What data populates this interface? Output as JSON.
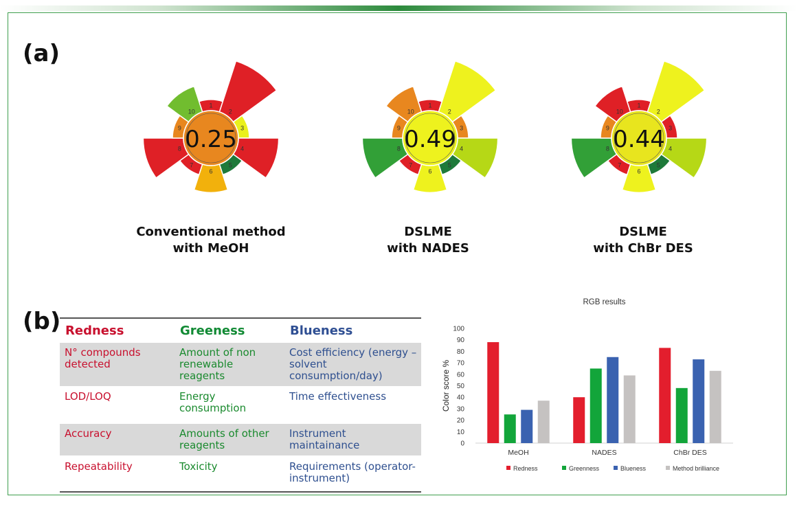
{
  "panel_a_label": "(a)",
  "panel_b_label": "(b)",
  "wheels": [
    {
      "score": "0.25",
      "center_color": "#e8871f",
      "caption": [
        "Conventional method",
        "with MeOH"
      ],
      "segments": [
        {
          "n": "1",
          "score": 0.2,
          "color": "#df2026"
        },
        {
          "n": "2",
          "score": 1.0,
          "color": "#df2026"
        },
        {
          "n": "3",
          "score": 0.2,
          "color": "#eaf01c"
        },
        {
          "n": "4",
          "score": 0.75,
          "color": "#df2026"
        },
        {
          "n": "5",
          "score": 0.2,
          "color": "#1e7a3a"
        },
        {
          "n": "6",
          "score": 0.5,
          "color": "#f2b10c"
        },
        {
          "n": "7",
          "score": 0.2,
          "color": "#df2026"
        },
        {
          "n": "8",
          "score": 0.75,
          "color": "#df2026"
        },
        {
          "n": "9",
          "score": 0.2,
          "color": "#e8871f"
        },
        {
          "n": "10",
          "score": 0.5,
          "color": "#71bd2f"
        }
      ]
    },
    {
      "score": "0.49",
      "center_color": "#eef21e",
      "caption": [
        "DSLME",
        "with NADES"
      ],
      "segments": [
        {
          "n": "1",
          "score": 0.2,
          "color": "#df2026"
        },
        {
          "n": "2",
          "score": 1.0,
          "color": "#eef21e"
        },
        {
          "n": "3",
          "score": 0.2,
          "color": "#e8871f"
        },
        {
          "n": "4",
          "score": 0.75,
          "color": "#b6d816"
        },
        {
          "n": "5",
          "score": 0.2,
          "color": "#1e7a3a"
        },
        {
          "n": "6",
          "score": 0.5,
          "color": "#eef21e"
        },
        {
          "n": "7",
          "score": 0.2,
          "color": "#df2026"
        },
        {
          "n": "8",
          "score": 0.75,
          "color": "#32a037"
        },
        {
          "n": "9",
          "score": 0.2,
          "color": "#e8871f"
        },
        {
          "n": "10",
          "score": 0.5,
          "color": "#e8871f"
        }
      ]
    },
    {
      "score": "0.44",
      "center_color": "#e8e51e",
      "caption": [
        "DSLME",
        "with ChBr DES"
      ],
      "segments": [
        {
          "n": "1",
          "score": 0.2,
          "color": "#df2026"
        },
        {
          "n": "2",
          "score": 1.0,
          "color": "#eef21e"
        },
        {
          "n": "3",
          "score": 0.2,
          "color": "#df2026"
        },
        {
          "n": "4",
          "score": 0.75,
          "color": "#b6d816"
        },
        {
          "n": "5",
          "score": 0.2,
          "color": "#1e7a3a"
        },
        {
          "n": "6",
          "score": 0.5,
          "color": "#eef21e"
        },
        {
          "n": "7",
          "score": 0.2,
          "color": "#df2026"
        },
        {
          "n": "8",
          "score": 0.75,
          "color": "#32a037"
        },
        {
          "n": "9",
          "score": 0.2,
          "color": "#e8871f"
        },
        {
          "n": "10",
          "score": 0.5,
          "color": "#df2026"
        }
      ]
    }
  ],
  "criteria_table": {
    "headers": [
      "Redness",
      "Greeness",
      "Blueness"
    ],
    "rows": [
      [
        "N° compounds detected",
        "Amount of non renewable reagents",
        "Cost efficiency (energy – solvent consumption/day)"
      ],
      [
        "LOD/LOQ",
        "Energy consumption",
        "Time effectiveness"
      ],
      [
        "Accuracy",
        "Amounts of other reagents",
        "Instrument maintainance"
      ],
      [
        "Repeatability",
        "Toxicity",
        "Requirements (operator-instrument)"
      ]
    ]
  },
  "chart_data": {
    "type": "bar",
    "title": "RGB results",
    "xlabel": "",
    "ylabel": "Color score %",
    "ylim": [
      0,
      100
    ],
    "yticks": [
      0,
      10,
      20,
      30,
      40,
      50,
      60,
      70,
      80,
      90,
      100
    ],
    "grid": false,
    "legend_position": "bottom",
    "categories": [
      "MeOH",
      "NADES",
      "ChBr DES"
    ],
    "series": [
      {
        "name": "Redness",
        "color": "#e31e2d",
        "values": [
          88,
          40,
          83
        ]
      },
      {
        "name": "Greenness",
        "color": "#12a53a",
        "values": [
          25,
          65,
          48
        ]
      },
      {
        "name": "Blueness",
        "color": "#3a62b0",
        "values": [
          29,
          75,
          73
        ]
      },
      {
        "name": "Method brilliance",
        "color": "#c5c2c1",
        "values": [
          37,
          59,
          63
        ]
      }
    ]
  }
}
